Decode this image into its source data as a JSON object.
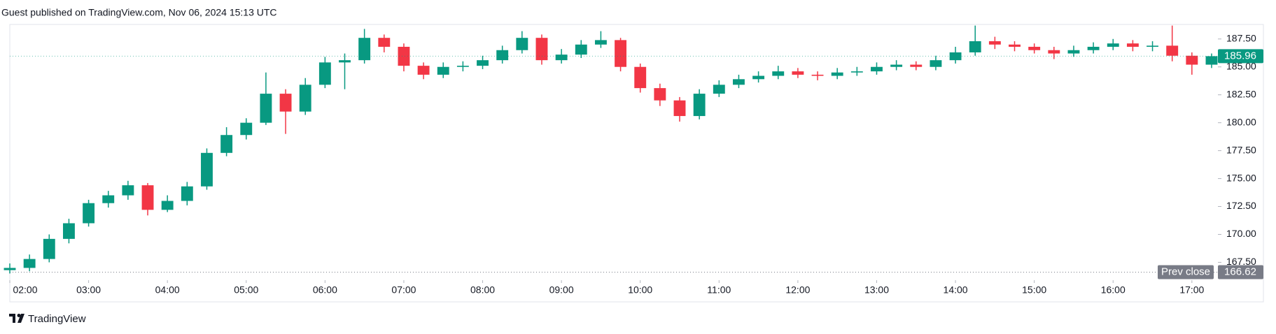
{
  "header": "Guest published on TradingView.com, Nov 06, 2024 15:13 UTC",
  "footer": "TradingView",
  "chart_data": {
    "type": "candlestick",
    "up_color": "#089981",
    "down_color": "#f23645",
    "x": [
      2,
      2.25,
      2.5,
      2.75,
      3,
      3.25,
      3.5,
      3.75,
      4,
      4.25,
      4.5,
      4.75,
      5,
      5.25,
      5.5,
      5.75,
      6,
      6.25,
      6.5,
      6.75,
      7,
      7.25,
      7.5,
      7.75,
      8,
      8.25,
      8.5,
      8.75,
      9,
      9.25,
      9.5,
      9.75,
      10,
      10.25,
      10.5,
      10.75,
      11,
      11.25,
      11.5,
      11.75,
      12,
      12.25,
      12.5,
      12.75,
      13,
      13.25,
      13.5,
      13.75,
      14,
      14.25,
      14.5,
      14.75,
      15,
      15.25,
      15.5,
      15.75,
      16,
      16.25,
      16.5,
      16.75,
      17,
      17.25
    ],
    "open": [
      166.8,
      167.0,
      167.8,
      169.6,
      171.0,
      172.8,
      173.5,
      174.4,
      172.2,
      173.0,
      174.3,
      177.3,
      178.9,
      180.0,
      182.6,
      181.0,
      183.4,
      185.4,
      185.6,
      187.6,
      186.8,
      185.1,
      184.3,
      185.0,
      185.1,
      185.6,
      186.5,
      187.6,
      185.6,
      186.1,
      187.0,
      187.4,
      185.0,
      183.1,
      182.0,
      180.6,
      182.6,
      183.4,
      183.9,
      184.2,
      184.6,
      184.3,
      184.2,
      184.5,
      184.6,
      185.0,
      185.2,
      185.0,
      185.6,
      186.3,
      187.3,
      187.0,
      186.8,
      186.5,
      186.2,
      186.5,
      186.8,
      187.1,
      186.8,
      186.9,
      186.0,
      185.2
    ],
    "high": [
      167.4,
      168.2,
      170.0,
      171.4,
      173.1,
      173.9,
      174.8,
      174.6,
      173.5,
      174.7,
      177.7,
      179.6,
      180.4,
      184.5,
      183.0,
      184.0,
      185.9,
      186.2,
      188.4,
      187.9,
      187.1,
      185.4,
      185.4,
      185.5,
      186.0,
      186.9,
      188.2,
      187.9,
      186.6,
      187.4,
      188.2,
      187.6,
      185.3,
      183.5,
      182.3,
      183.0,
      183.8,
      184.3,
      184.6,
      185.1,
      184.9,
      184.6,
      184.9,
      185.0,
      185.4,
      185.6,
      185.5,
      186.0,
      186.8,
      188.7,
      187.7,
      187.3,
      187.1,
      186.8,
      186.9,
      187.2,
      187.5,
      187.4,
      187.3,
      188.7,
      186.3,
      186.2
    ],
    "low": [
      166.5,
      166.7,
      167.5,
      169.2,
      170.7,
      172.4,
      173.1,
      171.7,
      172.0,
      172.6,
      174.0,
      177.0,
      178.5,
      179.8,
      179.0,
      180.7,
      183.1,
      183.0,
      185.3,
      186.3,
      184.6,
      183.9,
      184.0,
      184.6,
      184.8,
      185.3,
      186.2,
      185.2,
      185.3,
      185.8,
      186.7,
      184.6,
      182.7,
      181.5,
      180.1,
      180.3,
      182.3,
      183.1,
      183.6,
      183.9,
      184.0,
      183.8,
      183.9,
      184.2,
      184.3,
      184.7,
      184.7,
      184.7,
      185.3,
      186.0,
      186.6,
      186.4,
      186.2,
      185.7,
      185.9,
      186.2,
      186.5,
      186.4,
      186.4,
      185.5,
      184.3,
      184.9
    ],
    "close": [
      167.0,
      167.8,
      169.6,
      171.0,
      172.8,
      173.5,
      174.4,
      172.2,
      173.0,
      174.3,
      177.3,
      178.9,
      180.0,
      182.6,
      181.0,
      183.4,
      185.4,
      185.6,
      187.6,
      186.8,
      185.1,
      184.3,
      185.0,
      185.1,
      185.6,
      186.5,
      187.6,
      185.6,
      186.1,
      187.0,
      187.4,
      185.0,
      183.1,
      182.0,
      180.6,
      182.6,
      183.4,
      183.9,
      184.2,
      184.6,
      184.3,
      184.2,
      184.5,
      184.6,
      185.0,
      185.2,
      185.0,
      185.6,
      186.3,
      187.3,
      187.0,
      186.8,
      186.5,
      186.2,
      186.5,
      186.8,
      187.1,
      186.8,
      186.9,
      186.0,
      185.2,
      185.96
    ],
    "xlim": [
      2,
      17.33
    ],
    "xticks": [
      {
        "value": 2,
        "label": "02:00"
      },
      {
        "value": 3,
        "label": "03:00"
      },
      {
        "value": 4,
        "label": "04:00"
      },
      {
        "value": 5,
        "label": "05:00"
      },
      {
        "value": 6,
        "label": "06:00"
      },
      {
        "value": 7,
        "label": "07:00"
      },
      {
        "value": 8,
        "label": "08:00"
      },
      {
        "value": 9,
        "label": "09:00"
      },
      {
        "value": 10,
        "label": "10:00"
      },
      {
        "value": 11,
        "label": "11:00"
      },
      {
        "value": 12,
        "label": "12:00"
      },
      {
        "value": 13,
        "label": "13:00"
      },
      {
        "value": 14,
        "label": "14:00"
      },
      {
        "value": 15,
        "label": "15:00"
      },
      {
        "value": 16,
        "label": "16:00"
      },
      {
        "value": 17,
        "label": "17:00"
      }
    ],
    "ylim": [
      165.9,
      188.8
    ],
    "yticks": [
      {
        "value": 167.5,
        "label": "167.50"
      },
      {
        "value": 170,
        "label": "170.00"
      },
      {
        "value": 172.5,
        "label": "172.50"
      },
      {
        "value": 175,
        "label": "175.00"
      },
      {
        "value": 177.5,
        "label": "177.50"
      },
      {
        "value": 180,
        "label": "180.00"
      },
      {
        "value": 182.5,
        "label": "182.50"
      },
      {
        "value": 185,
        "label": "185.00"
      },
      {
        "value": 187.5,
        "label": "187.50"
      }
    ],
    "prev_close": {
      "label": "Prev close",
      "value": 166.62,
      "color": "#787b86"
    }
  }
}
